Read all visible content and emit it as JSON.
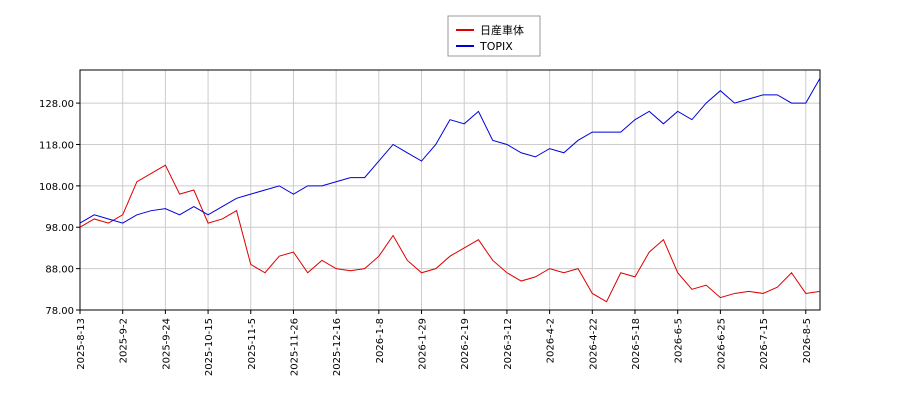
{
  "chart_data": {
    "type": "line",
    "categories": [
      "2025-8-13",
      null,
      null,
      "2025-9-2",
      null,
      null,
      "2025-9-24",
      null,
      null,
      "2025-10-15",
      null,
      null,
      "2025-11-5",
      null,
      null,
      "2025-11-26",
      null,
      null,
      "2025-12-16",
      null,
      null,
      "2026-1-8",
      null,
      null,
      "2026-1-29",
      null,
      null,
      "2026-2-19",
      null,
      null,
      "2026-3-12",
      null,
      null,
      "2026-4-2",
      null,
      null,
      "2026-4-22",
      null,
      null,
      "2026-5-18",
      null,
      null,
      "2026-6-5",
      null,
      null,
      "2026-6-25",
      null,
      null,
      "2026-7-15",
      null,
      null,
      "2026-8-5",
      null
    ],
    "series": [
      {
        "name": "日産車体",
        "color": "#dd0000",
        "values": [
          98,
          100,
          99,
          101,
          109,
          111,
          113,
          106,
          107,
          99,
          100,
          102,
          89,
          87,
          91,
          92,
          87,
          90,
          88,
          87.5,
          88,
          91,
          96,
          90,
          87,
          88,
          91,
          93,
          95,
          90,
          87,
          85,
          86,
          88,
          87,
          88,
          82,
          80,
          87,
          86,
          92,
          95,
          87,
          83,
          84,
          81,
          82,
          82.5,
          82,
          83.5,
          87,
          82,
          82.5
        ]
      },
      {
        "name": "TOPIX",
        "color": "#0000dd",
        "values": [
          99,
          101,
          100,
          99,
          101,
          102,
          102.5,
          101,
          103,
          101,
          103,
          105,
          106,
          107,
          108,
          106,
          108,
          108,
          109,
          110,
          110,
          114,
          118,
          116,
          114,
          118,
          124,
          123,
          126,
          119,
          118,
          116,
          115,
          117,
          116,
          119,
          121,
          121,
          121,
          124,
          126,
          123,
          126,
          124,
          128,
          131,
          128,
          129,
          130,
          130,
          128,
          128,
          134
        ]
      }
    ],
    "ylim": [
      78,
      136
    ],
    "yticks": [
      {
        "value": 78,
        "label": "78.00"
      },
      {
        "value": 88,
        "label": "88.00"
      },
      {
        "value": 98,
        "label": "98.00"
      },
      {
        "value": 108,
        "label": "108.00"
      },
      {
        "value": 118,
        "label": "118.00"
      },
      {
        "value": 128,
        "label": "128.00"
      }
    ],
    "grid": true
  }
}
